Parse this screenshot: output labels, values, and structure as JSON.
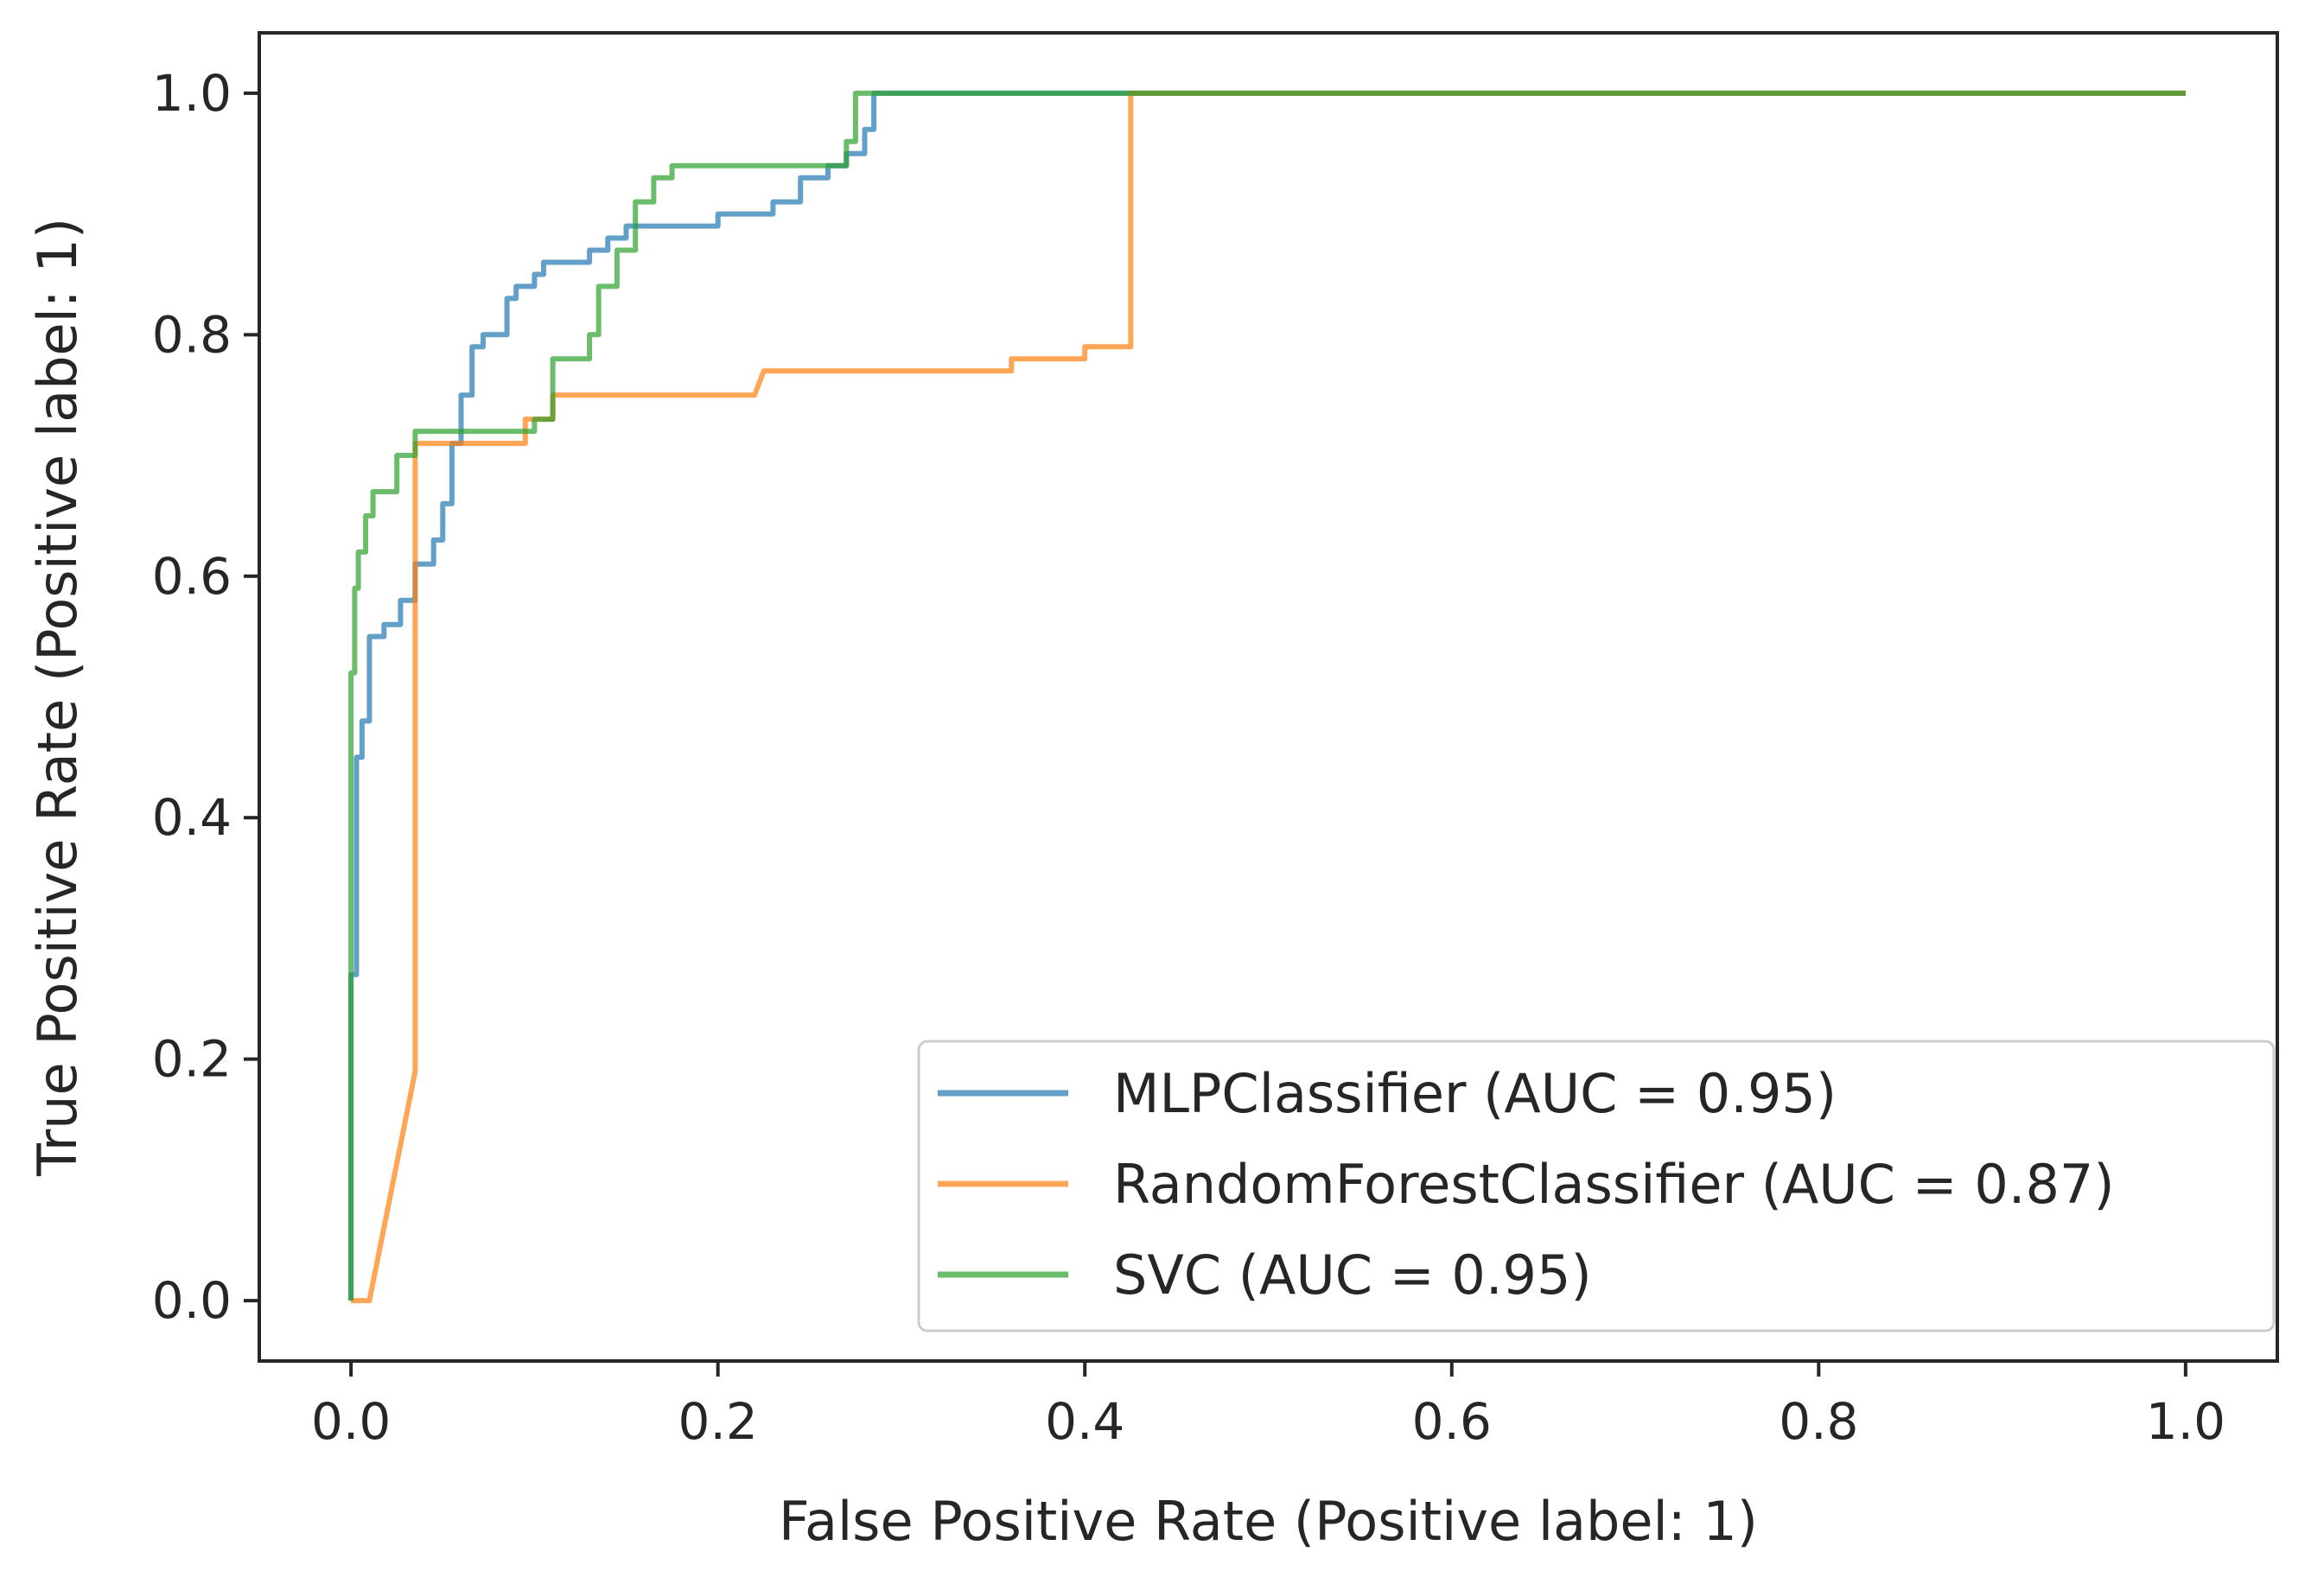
{
  "chart_data": {
    "type": "line",
    "title": "",
    "xlabel": "False Positive Rate (Positive label: 1)",
    "ylabel": "True Positive Rate (Positive label: 1)",
    "xlim": [
      -0.05,
      1.05
    ],
    "ylim": [
      -0.05,
      1.05
    ],
    "xticks": [
      0.0,
      0.2,
      0.4,
      0.6,
      0.8,
      1.0
    ],
    "yticks": [
      0.0,
      0.2,
      0.4,
      0.6,
      0.8,
      1.0
    ],
    "xtick_labels": [
      "0.0",
      "0.2",
      "0.4",
      "0.6",
      "0.8",
      "1.0"
    ],
    "ytick_labels": [
      "0.0",
      "0.2",
      "0.4",
      "0.6",
      "0.8",
      "1.0"
    ],
    "grid": false,
    "legend_position": "lower-right",
    "series": [
      {
        "name": "MLPClassifier (AUC = 0.95)",
        "color": "#1f77b4",
        "x": [
          0.0,
          0.0,
          0.003,
          0.003,
          0.006,
          0.006,
          0.01,
          0.01,
          0.018,
          0.018,
          0.027,
          0.027,
          0.035,
          0.035,
          0.045,
          0.045,
          0.05,
          0.05,
          0.055,
          0.055,
          0.06,
          0.06,
          0.066,
          0.066,
          0.072,
          0.072,
          0.085,
          0.085,
          0.09,
          0.09,
          0.1,
          0.1,
          0.105,
          0.105,
          0.13,
          0.13,
          0.14,
          0.14,
          0.15,
          0.15,
          0.175,
          0.175,
          0.2,
          0.2,
          0.23,
          0.23,
          0.245,
          0.245,
          0.26,
          0.26,
          0.27,
          0.27,
          0.28,
          0.28,
          0.285,
          0.285,
          1.0
        ],
        "y": [
          0.0,
          0.27,
          0.27,
          0.45,
          0.45,
          0.48,
          0.48,
          0.55,
          0.55,
          0.56,
          0.56,
          0.58,
          0.58,
          0.61,
          0.61,
          0.63,
          0.63,
          0.66,
          0.66,
          0.71,
          0.71,
          0.75,
          0.75,
          0.79,
          0.79,
          0.8,
          0.8,
          0.83,
          0.83,
          0.84,
          0.84,
          0.85,
          0.85,
          0.86,
          0.86,
          0.87,
          0.87,
          0.88,
          0.88,
          0.89,
          0.89,
          0.89,
          0.89,
          0.9,
          0.9,
          0.91,
          0.91,
          0.93,
          0.93,
          0.94,
          0.94,
          0.95,
          0.95,
          0.97,
          0.97,
          1.0,
          1.0
        ]
      },
      {
        "name": "RandomForestClassifier (AUC = 0.87)",
        "color": "#ff7f0e",
        "x": [
          0.0,
          0.01,
          0.035,
          0.035,
          0.038,
          0.038,
          0.095,
          0.095,
          0.11,
          0.11,
          0.22,
          0.225,
          0.36,
          0.36,
          0.4,
          0.4,
          0.425,
          0.425,
          0.53,
          0.53,
          1.0
        ],
        "y": [
          0.0,
          0.0,
          0.19,
          0.71,
          0.71,
          0.71,
          0.71,
          0.73,
          0.73,
          0.75,
          0.75,
          0.77,
          0.77,
          0.78,
          0.78,
          0.79,
          0.79,
          1.0,
          1.0,
          1.0,
          1.0
        ]
      },
      {
        "name": "SVC (AUC = 0.95)",
        "color": "#2ca02c",
        "x": [
          0.0,
          0.0,
          0.002,
          0.002,
          0.004,
          0.004,
          0.008,
          0.008,
          0.012,
          0.012,
          0.025,
          0.025,
          0.035,
          0.035,
          0.05,
          0.05,
          0.1,
          0.1,
          0.11,
          0.11,
          0.13,
          0.13,
          0.135,
          0.135,
          0.145,
          0.145,
          0.155,
          0.155,
          0.165,
          0.165,
          0.175,
          0.175,
          0.19,
          0.19,
          0.27,
          0.27,
          0.275,
          0.275,
          0.285,
          0.285,
          1.0
        ],
        "y": [
          0.0,
          0.52,
          0.52,
          0.59,
          0.59,
          0.62,
          0.62,
          0.65,
          0.65,
          0.67,
          0.67,
          0.7,
          0.7,
          0.72,
          0.72,
          0.72,
          0.72,
          0.73,
          0.73,
          0.78,
          0.78,
          0.8,
          0.8,
          0.84,
          0.84,
          0.87,
          0.87,
          0.91,
          0.91,
          0.93,
          0.93,
          0.94,
          0.94,
          0.94,
          0.94,
          0.96,
          0.96,
          1.0,
          1.0,
          1.0,
          1.0
        ]
      }
    ]
  }
}
